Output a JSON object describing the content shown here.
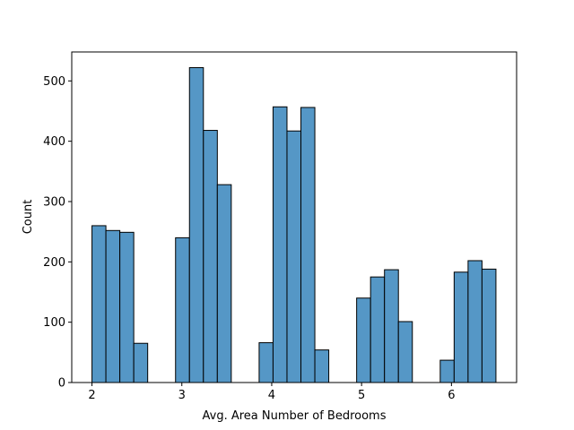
{
  "chart_data": {
    "type": "bar",
    "subtype": "histogram",
    "title": "",
    "xlabel": "Avg. Area Number of Bedrooms",
    "ylabel": "Count",
    "xlim": [
      1.775,
      6.725
    ],
    "ylim": [
      0,
      548
    ],
    "x_ticks": [
      2,
      3,
      4,
      5,
      6
    ],
    "y_ticks": [
      0,
      100,
      200,
      300,
      400,
      500
    ],
    "bin_width": 0.155,
    "bins": [
      {
        "start": 2.0,
        "end": 2.155,
        "count": 260
      },
      {
        "start": 2.155,
        "end": 2.31,
        "count": 252
      },
      {
        "start": 2.31,
        "end": 2.465,
        "count": 249
      },
      {
        "start": 2.465,
        "end": 2.62,
        "count": 65
      },
      {
        "start": 2.93,
        "end": 3.085,
        "count": 240
      },
      {
        "start": 3.085,
        "end": 3.24,
        "count": 522
      },
      {
        "start": 3.24,
        "end": 3.395,
        "count": 418
      },
      {
        "start": 3.395,
        "end": 3.55,
        "count": 328
      },
      {
        "start": 3.86,
        "end": 4.015,
        "count": 66
      },
      {
        "start": 4.015,
        "end": 4.17,
        "count": 457
      },
      {
        "start": 4.17,
        "end": 4.325,
        "count": 417
      },
      {
        "start": 4.325,
        "end": 4.48,
        "count": 456
      },
      {
        "start": 4.48,
        "end": 4.635,
        "count": 54
      },
      {
        "start": 4.945,
        "end": 5.1,
        "count": 140
      },
      {
        "start": 5.1,
        "end": 5.255,
        "count": 175
      },
      {
        "start": 5.255,
        "end": 5.41,
        "count": 187
      },
      {
        "start": 5.41,
        "end": 5.565,
        "count": 101
      },
      {
        "start": 5.875,
        "end": 6.03,
        "count": 37
      },
      {
        "start": 6.03,
        "end": 6.185,
        "count": 183
      },
      {
        "start": 6.185,
        "end": 6.34,
        "count": 202
      },
      {
        "start": 6.34,
        "end": 6.495,
        "count": 188
      }
    ],
    "grid": false,
    "legend": "none",
    "colors": {
      "bar_fill": "#5597c6",
      "bar_edge": "#000000",
      "axes": "#000000"
    }
  }
}
